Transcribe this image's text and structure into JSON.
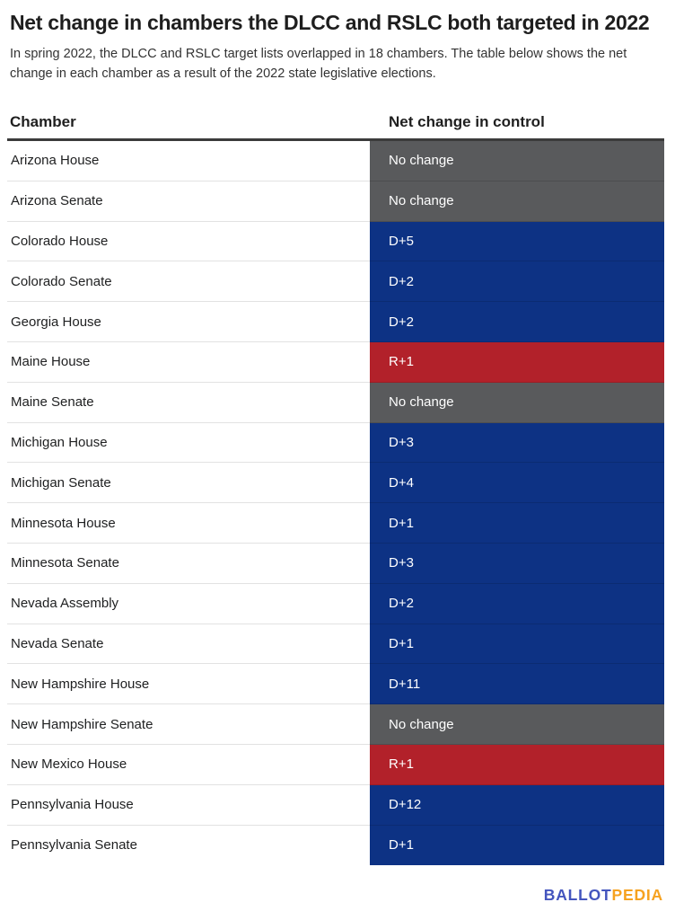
{
  "title": "Net change in chambers the DLCC and RSLC both targeted in 2022",
  "subtitle": "In spring 2022, the DLCC and RSLC target lists overlapped in 18 chambers. The table below shows the net change in each chamber as a result of the 2022 state legislative elections.",
  "chart_data": {
    "type": "table",
    "title": "Net change in chambers the DLCC and RSLC both targeted in 2022",
    "columns": [
      "Chamber",
      "Net change in control"
    ],
    "rows": [
      [
        "Arizona House",
        "No change"
      ],
      [
        "Arizona Senate",
        "No change"
      ],
      [
        "Colorado House",
        "D+5"
      ],
      [
        "Colorado Senate",
        "D+2"
      ],
      [
        "Georgia House",
        "D+2"
      ],
      [
        "Maine House",
        "R+1"
      ],
      [
        "Maine Senate",
        "No change"
      ],
      [
        "Michigan House",
        "D+3"
      ],
      [
        "Michigan Senate",
        "D+4"
      ],
      [
        "Minnesota House",
        "D+1"
      ],
      [
        "Minnesota Senate",
        "D+3"
      ],
      [
        "Nevada Assembly",
        "D+2"
      ],
      [
        "Nevada Senate",
        "D+1"
      ],
      [
        "New Hampshire House",
        "D+11"
      ],
      [
        "New Hampshire Senate",
        "No change"
      ],
      [
        "New Mexico House",
        "R+1"
      ],
      [
        "Pennsylvania House",
        "D+12"
      ],
      [
        "Pennsylvania Senate",
        "D+1"
      ]
    ]
  },
  "colors": {
    "democratic_gain": "#0d3284",
    "republican_gain": "#b2212a",
    "no_change": "#595a5c",
    "logo_blue": "#4455be",
    "logo_orange": "#f6a220"
  },
  "footer": {
    "logo_part1": "BALLOT",
    "logo_part2": "PEDIA"
  }
}
